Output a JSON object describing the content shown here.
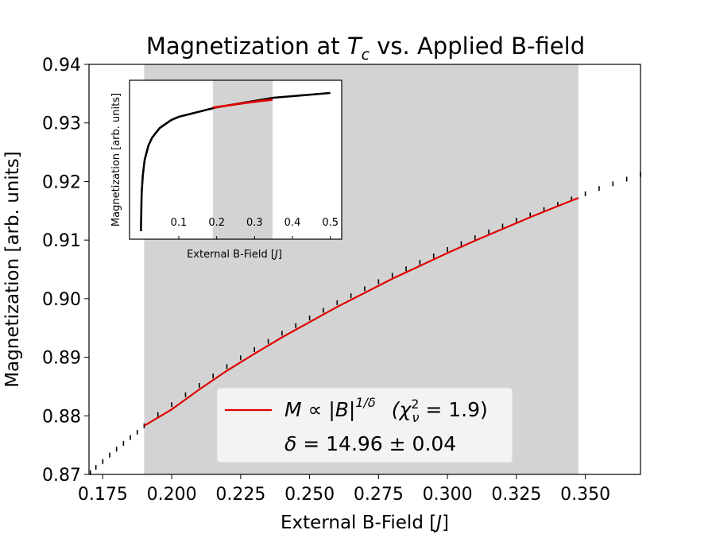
{
  "chart_data": [
    {
      "type": "scatter",
      "title": {
        "prefix": "Magnetization at ",
        "symbol": "T",
        "subscript": "c",
        "suffix": " vs. Applied B-field"
      },
      "xlabel": {
        "text": "External B-Field [",
        "unit": "J",
        "close": "]"
      },
      "ylabel": "Magnetization [arb. units]",
      "xlim": [
        0.17,
        0.37
      ],
      "ylim": [
        0.87,
        0.94
      ],
      "xticks": [
        "0.175",
        "0.200",
        "0.225",
        "0.250",
        "0.275",
        "0.300",
        "0.325",
        "0.350"
      ],
      "xtick_values": [
        0.175,
        0.2,
        0.225,
        0.25,
        0.275,
        0.3,
        0.325,
        0.35
      ],
      "yticks": [
        "0.87",
        "0.88",
        "0.89",
        "0.90",
        "0.91",
        "0.92",
        "0.93",
        "0.94"
      ],
      "ytick_values": [
        0.87,
        0.88,
        0.89,
        0.9,
        0.91,
        0.92,
        0.93,
        0.94
      ],
      "grid": false,
      "fit_region": {
        "x_start": 0.19,
        "x_end": 0.3475,
        "color": "#d3d3d3"
      },
      "series": [
        {
          "kind": "data-points",
          "color": "#000000",
          "x": [
            0.1705,
            0.1725,
            0.175,
            0.1775,
            0.18,
            0.1825,
            0.185,
            0.1875,
            0.19,
            0.195,
            0.2,
            0.205,
            0.21,
            0.215,
            0.22,
            0.225,
            0.23,
            0.235,
            0.24,
            0.245,
            0.25,
            0.255,
            0.26,
            0.265,
            0.27,
            0.275,
            0.28,
            0.285,
            0.29,
            0.295,
            0.3,
            0.305,
            0.31,
            0.315,
            0.32,
            0.325,
            0.33,
            0.335,
            0.34,
            0.345,
            0.35,
            0.355,
            0.36,
            0.365,
            0.37
          ],
          "y": [
            0.8703,
            0.8712,
            0.8722,
            0.8733,
            0.8743,
            0.8753,
            0.8763,
            0.8772,
            0.8783,
            0.8802,
            0.8819,
            0.8836,
            0.8852,
            0.8868,
            0.8884,
            0.8899,
            0.8913,
            0.8927,
            0.8941,
            0.8954,
            0.8967,
            0.898,
            0.8993,
            0.9005,
            0.9017,
            0.9029,
            0.904,
            0.9051,
            0.9062,
            0.9073,
            0.9084,
            0.9094,
            0.9104,
            0.9114,
            0.9124,
            0.9134,
            0.9143,
            0.9152,
            0.9161,
            0.917,
            0.9179,
            0.9188,
            0.9196,
            0.9204,
            0.9212
          ]
        },
        {
          "kind": "fit-line",
          "color": "#e00000",
          "x": [
            0.19,
            0.2,
            0.21,
            0.22,
            0.23,
            0.24,
            0.25,
            0.26,
            0.27,
            0.28,
            0.29,
            0.3,
            0.31,
            0.32,
            0.33,
            0.34,
            0.3475
          ],
          "y": [
            0.8783,
            0.8811,
            0.8845,
            0.8877,
            0.8906,
            0.8934,
            0.896,
            0.8986,
            0.901,
            0.9034,
            0.9056,
            0.9078,
            0.9099,
            0.9119,
            0.9139,
            0.9158,
            0.9172
          ]
        }
      ],
      "legend": {
        "placement": "lower-center",
        "fit_label": {
          "lhs": "M",
          "rel": " ∝ |",
          "var": "B",
          "bar": "|",
          "exp": "1/δ",
          "chi": "(χ",
          "chi_sup": "2",
          "chi_sub": "ν",
          "chi_val": " = 1.9)"
        },
        "delta_label": {
          "sym": "δ",
          "val": " = 14.96 ± 0.04"
        }
      }
    },
    {
      "type": "line",
      "title": "",
      "xlabel": {
        "text": "External B-Field [",
        "unit": "J",
        "close": "]"
      },
      "ylabel": "Magnetization [arb. units]",
      "xlim": [
        -0.03,
        0.53
      ],
      "ylim": [
        0.835,
        0.935
      ],
      "xticks": [
        "0.1",
        "0.2",
        "0.3",
        "0.4",
        "0.5"
      ],
      "xtick_values": [
        0.1,
        0.2,
        0.3,
        0.4,
        0.5
      ],
      "yticks": [],
      "shaded_region": {
        "x_start": 0.19,
        "x_end": 0.3475,
        "color": "#d3d3d3"
      },
      "series": [
        {
          "kind": "magnetization-curve",
          "color": "#000000",
          "x": [
            0.0,
            0.002,
            0.005,
            0.01,
            0.02,
            0.03,
            0.05,
            0.08,
            0.1,
            0.15,
            0.2,
            0.25,
            0.3,
            0.35,
            0.4,
            0.45,
            0.5
          ],
          "y": [
            0.84,
            0.864,
            0.875,
            0.885,
            0.894,
            0.899,
            0.905,
            0.91,
            0.912,
            0.915,
            0.918,
            0.92,
            0.922,
            0.924,
            0.925,
            0.926,
            0.927
          ]
        },
        {
          "kind": "fit-segment",
          "color": "#e00000",
          "x": [
            0.19,
            0.22,
            0.25,
            0.28,
            0.31,
            0.3475
          ],
          "y": [
            0.9178,
            0.9188,
            0.9199,
            0.9209,
            0.9218,
            0.9228
          ]
        }
      ]
    }
  ]
}
